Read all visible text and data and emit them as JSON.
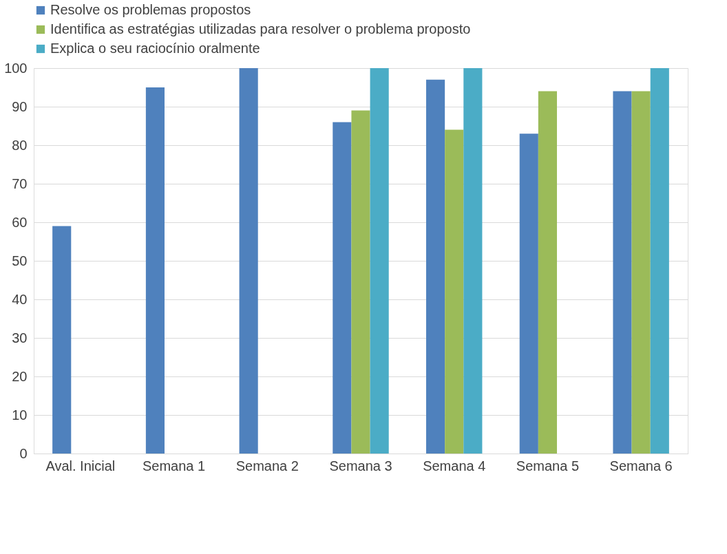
{
  "chart_data": {
    "type": "bar",
    "categories": [
      "Aval. Inicial",
      "Semana 1",
      "Semana 2",
      "Semana 3",
      "Semana 4",
      "Semana 5",
      "Semana 6"
    ],
    "series": [
      {
        "name": "Resolve os problemas propostos",
        "color": "#4f81bd",
        "values": [
          59,
          95,
          100,
          86,
          97,
          83,
          94
        ]
      },
      {
        "name": "Identifica as estratégias utilizadas para resolver o problema proposto",
        "color": "#9bbb59",
        "values": [
          null,
          null,
          null,
          89,
          84,
          94,
          94
        ]
      },
      {
        "name": "Explica o seu raciocínio oralmente",
        "color": "#4bacc6",
        "values": [
          null,
          null,
          null,
          100,
          100,
          null,
          100
        ]
      }
    ],
    "ylim": [
      0,
      100
    ],
    "yticks": [
      0,
      10,
      20,
      30,
      40,
      50,
      60,
      70,
      80,
      90,
      100
    ],
    "grid": "y",
    "legend": "top"
  }
}
